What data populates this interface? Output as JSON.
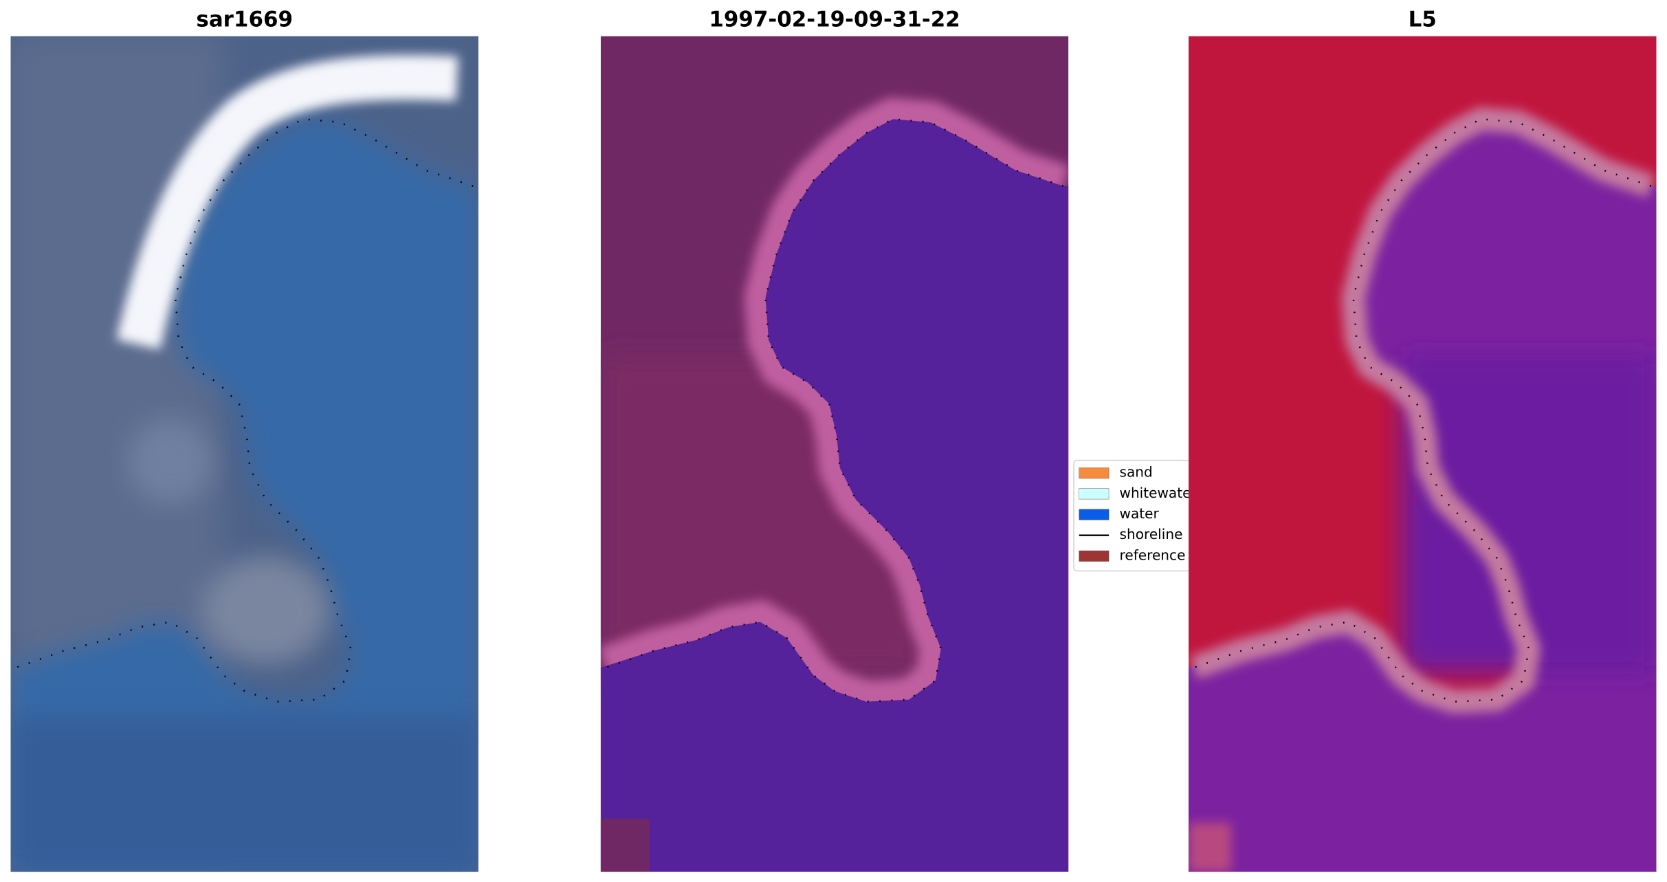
{
  "panels": [
    {
      "title": "sar1669"
    },
    {
      "title": "1997-02-19-09-31-22"
    },
    {
      "title": "L5"
    }
  ],
  "legend": [
    {
      "label": "sand",
      "color": "#f68a3d"
    },
    {
      "label": "whitewater",
      "color": "#ccffff"
    },
    {
      "label": "water",
      "color": "#0b5de8"
    },
    {
      "label": "shoreline",
      "color": "#000000"
    },
    {
      "label": "reference",
      "color": "#9e3434"
    }
  ]
}
